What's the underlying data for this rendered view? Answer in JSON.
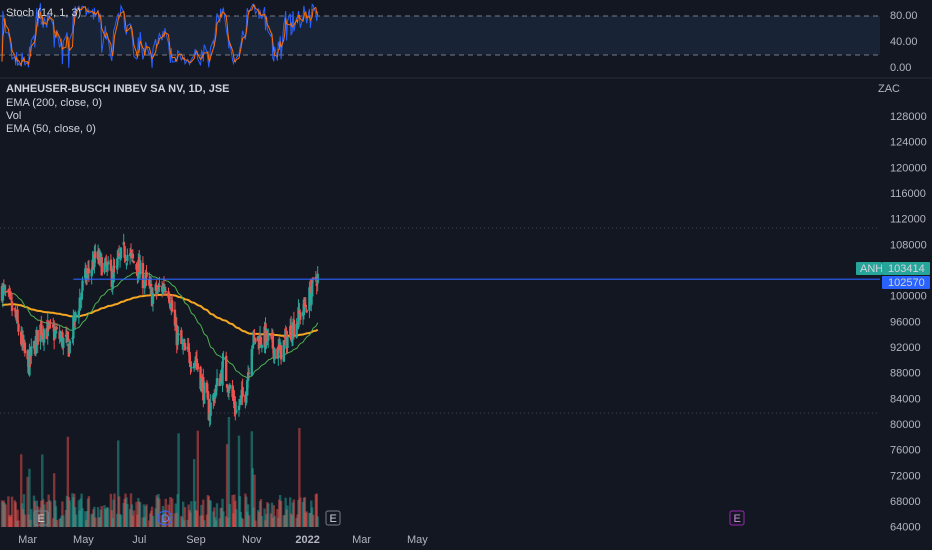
{
  "indicators": {
    "stoch_label": "Stoch (14, 1, 3)",
    "stoch_ticks": [
      "80.00",
      "40.00",
      "0.00"
    ],
    "title": "ANHEUSER-BUSCH INBEV SA NV, 1D, JSE",
    "ema200_label": "EMA (200, close, 0)",
    "vol_label": "Vol",
    "ema50_label": "EMA (50, close, 0)"
  },
  "price_axis": {
    "currency": "ZAC",
    "marker_symbol": "ANH",
    "last_price": "103414",
    "line_level": "102570"
  },
  "events": [
    "E",
    "D",
    "E",
    "E"
  ],
  "colors": {
    "background": "#131722",
    "up": "#26a69a",
    "down": "#ef5350",
    "ema200": "#f5a623",
    "ema50": "#4caf50",
    "stoch_k": "#2962ff",
    "stoch_d": "#ff6d00",
    "level_line": "#2962ff"
  },
  "chart_data": {
    "type": "candlestick",
    "x_ticks": [
      "Mar",
      "May",
      "Jul",
      "Sep",
      "Nov",
      "2022",
      "Mar",
      "May"
    ],
    "y_ticks": [
      128000,
      124000,
      120000,
      116000,
      112000,
      108000,
      104000,
      100000,
      96000,
      92000,
      88000,
      84000,
      80000,
      76000,
      72000,
      68000,
      64000
    ],
    "ylim": [
      63000,
      130000
    ],
    "horizontal_level": 102570,
    "close_anchors": [
      {
        "date": "2021-02-01",
        "close": 101000
      },
      {
        "date": "2021-02-15",
        "close": 97000
      },
      {
        "date": "2021-03-01",
        "close": 89000
      },
      {
        "date": "2021-03-15",
        "close": 95000
      },
      {
        "date": "2021-04-01",
        "close": 94000
      },
      {
        "date": "2021-04-15",
        "close": 92000
      },
      {
        "date": "2021-05-01",
        "close": 102000
      },
      {
        "date": "2021-05-15",
        "close": 106000
      },
      {
        "date": "2021-06-01",
        "close": 103000
      },
      {
        "date": "2021-06-15",
        "close": 107000
      },
      {
        "date": "2021-07-01",
        "close": 104000
      },
      {
        "date": "2021-07-15",
        "close": 100000
      },
      {
        "date": "2021-08-01",
        "close": 102000
      },
      {
        "date": "2021-08-10",
        "close": 94000
      },
      {
        "date": "2021-08-20",
        "close": 91000
      },
      {
        "date": "2021-09-01",
        "close": 90000
      },
      {
        "date": "2021-09-15",
        "close": 82000
      },
      {
        "date": "2021-10-01",
        "close": 89000
      },
      {
        "date": "2021-10-15",
        "close": 82000
      },
      {
        "date": "2021-10-25",
        "close": 85000
      },
      {
        "date": "2021-11-01",
        "close": 93000
      },
      {
        "date": "2021-11-15",
        "close": 93500
      },
      {
        "date": "2021-12-01",
        "close": 91000
      },
      {
        "date": "2021-12-15",
        "close": 95000
      },
      {
        "date": "2022-01-01",
        "close": 99000
      },
      {
        "date": "2022-01-12",
        "close": 103414
      }
    ]
  }
}
